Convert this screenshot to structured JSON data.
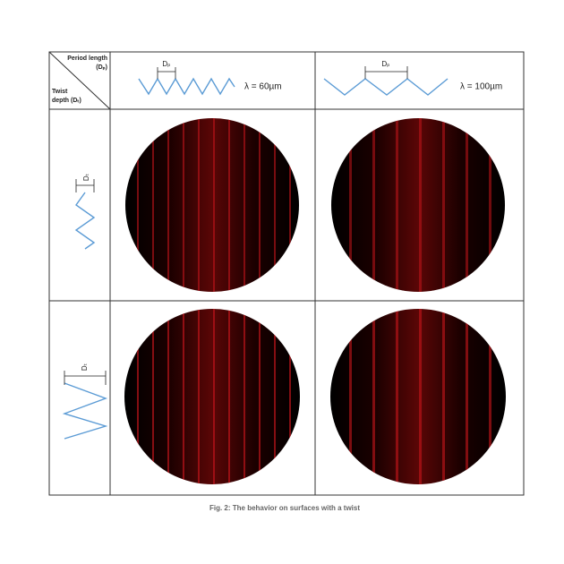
{
  "corner": {
    "period_label": "Period length",
    "period_symbol": "(Dₚ)",
    "twist_label": "Twist",
    "twist_symbol": "depth (Dₜ)"
  },
  "columns": [
    {
      "symbol": "Dₚ",
      "label": "λ = 60µm"
    },
    {
      "symbol": "Dₚ",
      "label": "λ = 100µm"
    }
  ],
  "rows": [
    {
      "symbol": "Dₜ"
    },
    {
      "symbol": "Dₜ"
    }
  ],
  "caption": "Fig. 2: The behavior on surfaces with a twist"
}
